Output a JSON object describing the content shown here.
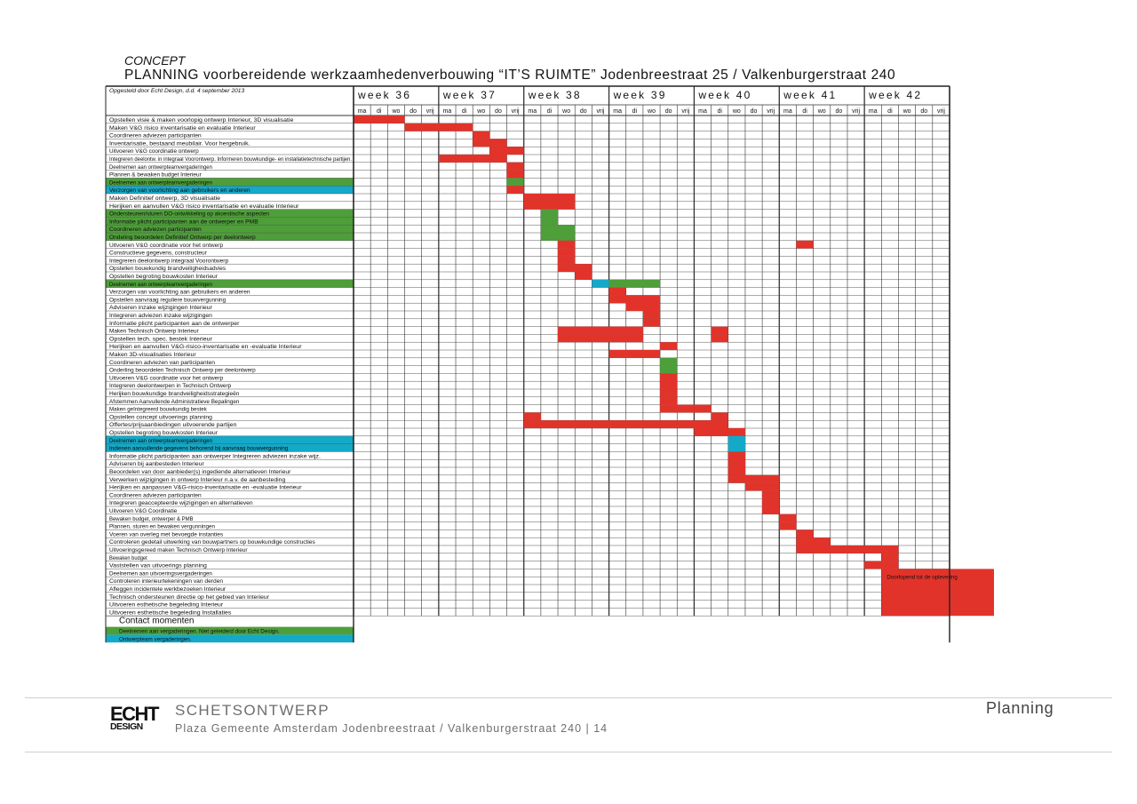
{
  "header": {
    "concept": "CONCEPT",
    "title": "PLANNING voorbereidende werkzaamhedenverbouwing “IT’S RUIMTE” Jodenbreestraat 25 / Valkenburgerstraat 240"
  },
  "colors": {
    "red": "#e2332b",
    "green": "#4e9e3a",
    "blue": "#14a9c8",
    "grid": "#333333"
  },
  "chart_data": {
    "type": "gantt",
    "meta": "Opgesteld door Echt Design, d.d. 4 september 2013",
    "weeks": [
      "week 36",
      "week 37",
      "week 38",
      "week 39",
      "week 40",
      "week 41",
      "week 42"
    ],
    "days": [
      "ma",
      "di",
      "wo",
      "do",
      "vrij"
    ],
    "rows": [
      {
        "label": "Opstellen visie & maken voorlopig ontwerp Interieur, 3D visualisatie",
        "hl": null
      },
      {
        "label": "Maken V&G risico inventarisatie en evaluatie Interieur",
        "hl": null
      },
      {
        "label": "Coordineren adviezen participanten",
        "hl": null
      },
      {
        "label": "Inventarisatie, bestaand meubilair. Voor hergebruik.",
        "hl": null
      },
      {
        "label": "Uitvoeren V&G coordinatie ontwerp",
        "hl": null
      },
      {
        "label": "Integreren deelontw. in integraal Voorontwerp. Informeren bouwkundige- en installatietechnische partijen.",
        "hl": null
      },
      {
        "label": "Deelnemen aan ontwerpteamvergaderingen",
        "hl": null
      },
      {
        "label": "Plannen & bewaken budget Interieur",
        "hl": null
      },
      {
        "label": "Deelnemen aan ontwerpteamvergaderingen",
        "hl": "green"
      },
      {
        "label": "Verzorgen van voorlichting aan gebruikers en anderen",
        "hl": "blue"
      },
      {
        "label": "Maken Definitief ontwerp, 3D visualisatie",
        "hl": null
      },
      {
        "label": "Herijken en aanvullen V&G risico inventarisatie en evaluatie Interieur",
        "hl": null
      },
      {
        "label": "Ondersteunen/sturen DO-ontwikkeling op akoestische aspecten",
        "hl": "green"
      },
      {
        "label": "Informatie plicht participanten aan de ontwerper en PMB",
        "hl": "green"
      },
      {
        "label": "Coordineren adviezen participanten",
        "hl": "green"
      },
      {
        "label": "Ondeling beoordelen Definitief Ontwerp per deelontwerp",
        "hl": "green"
      },
      {
        "label": "Uitvoeren V&G coordinatie voor het ontwerp",
        "hl": null
      },
      {
        "label": "Constructieve gegevens, constructeur",
        "hl": null
      },
      {
        "label": "Integreren deelontwerp integraal Voorontwerp",
        "hl": null
      },
      {
        "label": "Opstellen bouwkundig brandveiligheidsadvies",
        "hl": null
      },
      {
        "label": "Opstellen begroting bouwkosten Interieur",
        "hl": null
      },
      {
        "label": "Deelnemen aan ontwerpteamvergaderingen",
        "hl": "green"
      },
      {
        "label": "Verzorgen van voorlichting aan gebruikers en anderen",
        "hl": null
      },
      {
        "label": "Opstellen aanvraag reguliere bouwvergunning",
        "hl": null
      },
      {
        "label": "Adviseren inzake wijzigingen Interieur",
        "hl": null
      },
      {
        "label": "Integreren adviezen inzake wijzigingen",
        "hl": null
      },
      {
        "label": "Informatie plicht participanten aan de ontwerper",
        "hl": null
      },
      {
        "label": "Maken Technisch Ontwerp Interieur",
        "hl": null
      },
      {
        "label": "Opstellen tech. spec. bestek Interieur",
        "hl": null
      },
      {
        "label": "Herijken en aanvullen V&G-risico-inventarisatie en -evaluatie Interieur",
        "hl": null
      },
      {
        "label": "Maken 3D-visualisaties Interieur",
        "hl": null
      },
      {
        "label": "Coordineren adviezen van  participanten",
        "hl": null
      },
      {
        "label": "Onderling beoordelen Technisch Ontwerp per deelontwerp",
        "hl": null
      },
      {
        "label": "Uitvoeren V&G coordinatie voor het ontwerp",
        "hl": null
      },
      {
        "label": "Integreren deelontwerpen in Technisch Ontwerp",
        "hl": null
      },
      {
        "label": "Herijken bouwkundige brandveiligheidsstrategieën",
        "hl": null
      },
      {
        "label": "Afstemmen Aanvullende Administratieve Bepalingen",
        "hl": null
      },
      {
        "label": "Maken geïntegreerd bouwkundig bestek",
        "hl": null
      },
      {
        "label": "Opstellen concept uitvoerings planning",
        "hl": null
      },
      {
        "label": "Offertes/prijsaanbiedingen uitvoerende partijen",
        "hl": null
      },
      {
        "label": "Opstellen begroting bouwkosten Interieur",
        "hl": null
      },
      {
        "label": "Deelnemen aan ontwerpteamvergaderingen",
        "hl": "blue"
      },
      {
        "label": "Indienen aanvullende gegevens behorend bij aanvraag bouwvergunning",
        "hl": "blue"
      },
      {
        "label": "Informatie plicht participanten aan ontwerper Integreren adviezen inzake wijz.",
        "hl": null
      },
      {
        "label": "Adviseren bij aanbesteden Interieur",
        "hl": null
      },
      {
        "label": "Beoordelen van door aanbieder(s) ingediende alternatieven Interieur",
        "hl": null
      },
      {
        "label": "Verwerken wijzigingen in ontwerp Interieur n.a.v. de aanbesteding",
        "hl": null
      },
      {
        "label": "Herijken en aanpassen V&G-risico-inventarisatie en -evaluatie Interieur",
        "hl": null
      },
      {
        "label": "Coordineren adviezen participanten",
        "hl": null
      },
      {
        "label": "Integreren geaccepteerde wijzigingen en alternatieven",
        "hl": null
      },
      {
        "label": "Uitvoeren V&G Coordinatie",
        "hl": null
      },
      {
        "label": "Bewaken budget, ontwerper & PMB",
        "hl": null
      },
      {
        "label": "Plannen, sturen en bewaken vergunningen",
        "hl": null
      },
      {
        "label": "Voeren van overleg met bevoegde instanties",
        "hl": null
      },
      {
        "label": "Controleren gedetail uitwerking van bouwpartners op bouwkundige constructies",
        "hl": null
      },
      {
        "label": "Uitvoeringsgereed maken Technisch Ontwerp Interieur",
        "hl": null
      },
      {
        "label": "Bewaken budget",
        "hl": null
      },
      {
        "label": "Vaststellen van uitvoerings planning",
        "hl": null
      },
      {
        "label": "Deelnemen aan uitvoeringsvergaderingen",
        "hl": null
      },
      {
        "label": "Controleren interieurtekeningen van derden",
        "hl": null
      },
      {
        "label": "Afleggen incidentele werkbezoeken Interieur",
        "hl": null
      },
      {
        "label": "Technisch ondersteunen directie op het gebied van Interieur",
        "hl": null
      },
      {
        "label": "Uitvoeren esthetische begeleding Interieur",
        "hl": null
      },
      {
        "label": "Uitvoeren esthetische begeleding Installaties",
        "hl": null
      }
    ],
    "bars": [
      {
        "row": 0,
        "start": 0,
        "end": 3,
        "color": "red"
      },
      {
        "row": 1,
        "start": 3,
        "end": 7,
        "color": "red"
      },
      {
        "row": 2,
        "start": 7,
        "end": 8,
        "color": "red"
      },
      {
        "row": 3,
        "start": 7,
        "end": 9,
        "color": "red"
      },
      {
        "row": 4,
        "start": 8,
        "end": 10,
        "color": "red"
      },
      {
        "row": 5,
        "start": 5,
        "end": 9,
        "color": "red"
      },
      {
        "row": 6,
        "start": 9,
        "end": 10,
        "color": "red"
      },
      {
        "row": 7,
        "start": 9,
        "end": 10,
        "color": "red"
      },
      {
        "row": 8,
        "start": 9,
        "end": 10,
        "color": "green"
      },
      {
        "row": 9,
        "start": 9,
        "end": 10,
        "color": "red"
      },
      {
        "row": 10,
        "start": 10,
        "end": 13,
        "color": "red"
      },
      {
        "row": 11,
        "start": 10,
        "end": 13,
        "color": "red"
      },
      {
        "row": 12,
        "start": 11,
        "end": 12,
        "color": "green"
      },
      {
        "row": 13,
        "start": 11,
        "end": 12,
        "color": "green"
      },
      {
        "row": 14,
        "start": 11,
        "end": 13,
        "color": "green"
      },
      {
        "row": 15,
        "start": 11,
        "end": 13,
        "color": "green"
      },
      {
        "row": 16,
        "start": 12,
        "end": 13,
        "color": "red"
      },
      {
        "row": 16,
        "start": 26,
        "end": 27,
        "color": "red"
      },
      {
        "row": 17,
        "start": 12,
        "end": 13,
        "color": "red"
      },
      {
        "row": 18,
        "start": 12,
        "end": 13,
        "color": "red"
      },
      {
        "row": 19,
        "start": 12,
        "end": 14,
        "color": "red"
      },
      {
        "row": 20,
        "start": 13,
        "end": 14,
        "color": "red"
      },
      {
        "row": 21,
        "start": 14,
        "end": 15,
        "color": "blue"
      },
      {
        "row": 21,
        "start": 15,
        "end": 18,
        "color": "green"
      },
      {
        "row": 22,
        "start": 15,
        "end": 16,
        "color": "red"
      },
      {
        "row": 23,
        "start": 15,
        "end": 18,
        "color": "red"
      },
      {
        "row": 24,
        "start": 16,
        "end": 18,
        "color": "red"
      },
      {
        "row": 25,
        "start": 17,
        "end": 18,
        "color": "red"
      },
      {
        "row": 26,
        "start": 17,
        "end": 18,
        "color": "red"
      },
      {
        "row": 27,
        "start": 12,
        "end": 17,
        "color": "red"
      },
      {
        "row": 27,
        "start": 21,
        "end": 22,
        "color": "red"
      },
      {
        "row": 28,
        "start": 12,
        "end": 17,
        "color": "red"
      },
      {
        "row": 28,
        "start": 21,
        "end": 22,
        "color": "red"
      },
      {
        "row": 29,
        "start": 18,
        "end": 19,
        "color": "red"
      },
      {
        "row": 30,
        "start": 15,
        "end": 18,
        "color": "red"
      },
      {
        "row": 31,
        "start": 18,
        "end": 19,
        "color": "green"
      },
      {
        "row": 32,
        "start": 18,
        "end": 19,
        "color": "green"
      },
      {
        "row": 33,
        "start": 18,
        "end": 19,
        "color": "red"
      },
      {
        "row": 34,
        "start": 18,
        "end": 19,
        "color": "red"
      },
      {
        "row": 35,
        "start": 18,
        "end": 19,
        "color": "red"
      },
      {
        "row": 36,
        "start": 18,
        "end": 19,
        "color": "red"
      },
      {
        "row": 37,
        "start": 18,
        "end": 21,
        "color": "red"
      },
      {
        "row": 38,
        "start": 10,
        "end": 11,
        "color": "red"
      },
      {
        "row": 38,
        "start": 21,
        "end": 22,
        "color": "red"
      },
      {
        "row": 39,
        "start": 10,
        "end": 22,
        "color": "red"
      },
      {
        "row": 40,
        "start": 20,
        "end": 23,
        "color": "red"
      },
      {
        "row": 41,
        "start": 22,
        "end": 23,
        "color": "blue"
      },
      {
        "row": 42,
        "start": 22,
        "end": 23,
        "color": "blue"
      },
      {
        "row": 43,
        "start": 22,
        "end": 23,
        "color": "red"
      },
      {
        "row": 44,
        "start": 22,
        "end": 23,
        "color": "red"
      },
      {
        "row": 45,
        "start": 22,
        "end": 23,
        "color": "red"
      },
      {
        "row": 46,
        "start": 22,
        "end": 25,
        "color": "red"
      },
      {
        "row": 47,
        "start": 23,
        "end": 25,
        "color": "red"
      },
      {
        "row": 48,
        "start": 24,
        "end": 25,
        "color": "red"
      },
      {
        "row": 49,
        "start": 24,
        "end": 25,
        "color": "red"
      },
      {
        "row": 50,
        "start": 24,
        "end": 25,
        "color": "red"
      },
      {
        "row": 51,
        "start": 25,
        "end": 26,
        "color": "red"
      },
      {
        "row": 52,
        "start": 25,
        "end": 26,
        "color": "red"
      },
      {
        "row": 53,
        "start": 26,
        "end": 27,
        "color": "red"
      },
      {
        "row": 54,
        "start": 26,
        "end": 28,
        "color": "red"
      },
      {
        "row": 55,
        "start": 26,
        "end": 32,
        "color": "red"
      },
      {
        "row": 56,
        "start": 31,
        "end": 32,
        "color": "red"
      },
      {
        "row": 57,
        "start": 30,
        "end": 32,
        "color": "red"
      }
    ],
    "ongoing": {
      "start_row": 58,
      "end_row": 63,
      "start_col": 31,
      "label": "Doorlopend tot de oplevering"
    },
    "contact": {
      "heading": "Contact momenten",
      "items": [
        {
          "label": "Deelnemen aan vergaderingen. Niet geleiderd door Echt Design.",
          "color": "green"
        },
        {
          "label": "Ontwerpteam vergaderingen.",
          "color": "blue"
        }
      ]
    }
  },
  "footer": {
    "logo_line1": "ECHT",
    "logo_line2": "DESIGN",
    "subtitle": "SCHETSONTWERP",
    "project": "Plaza Gemeente Amsterdam Jodenbreestraat / Valkenburgerstraat 240  |  14",
    "section": "Planning"
  }
}
